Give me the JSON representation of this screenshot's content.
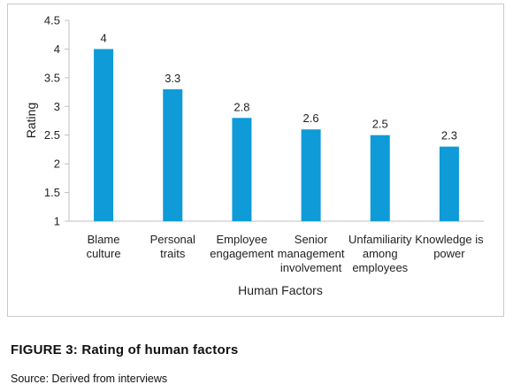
{
  "chart_data": {
    "type": "bar",
    "categories": [
      [
        "Blame",
        "culture"
      ],
      [
        "Personal",
        "traits"
      ],
      [
        "Employee",
        "engagement"
      ],
      [
        "Senior",
        "management",
        "involvement"
      ],
      [
        "Unfamiliarity",
        "among",
        "employees"
      ],
      [
        "Knowledge is",
        "power"
      ]
    ],
    "values": [
      4,
      3.3,
      2.8,
      2.6,
      2.5,
      2.3
    ],
    "value_labels": [
      "4",
      "3.3",
      "2.8",
      "2.6",
      "2.5",
      "2.3"
    ],
    "ylabel": "Rating",
    "xlabel": "Human Factors",
    "ylim": [
      1,
      4.5
    ],
    "yticks": [
      "1",
      "1.5",
      "2",
      "2.5",
      "3",
      "3.5",
      "4",
      "4.5"
    ],
    "bar_color": "#0e9bd8",
    "grid": false
  },
  "caption": "FIGURE 3:  Rating of human factors",
  "source": "Source: Derived from interviews"
}
